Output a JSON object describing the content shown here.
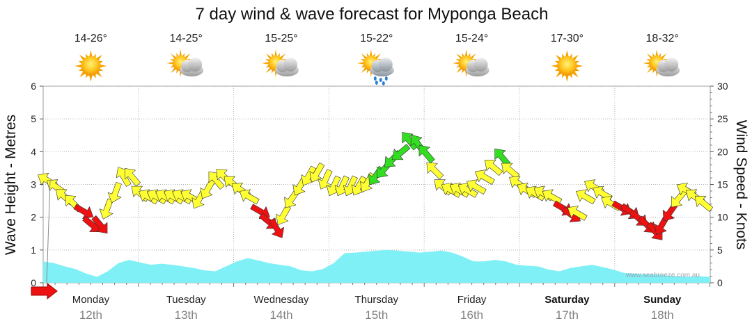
{
  "chart_data": {
    "type": "area",
    "title": "7 day wind & wave forecast for Myponga Beach",
    "ylabel_left": "Wave Height - Metres",
    "ylabel_right": "Wind Speed - Knots",
    "ylim_left": [
      0,
      6
    ],
    "ylim_right": [
      0,
      30
    ],
    "yticks_left": [
      "0",
      "1",
      "2",
      "3",
      "4",
      "5",
      "6"
    ],
    "yticks_right": [
      "0",
      "5",
      "10",
      "15",
      "20",
      "25",
      "30"
    ],
    "watermark": "www.seabreeze.com.au",
    "colors": {
      "wave_fill": "#7ff0f5",
      "wind_light": "#ffff33",
      "wind_moderate": "#33dd22",
      "wind_offshore": "#ee1111",
      "grid": "#b0b0b0"
    },
    "days": [
      {
        "day": "Monday",
        "date": "12th",
        "temp": "14-26°",
        "weather": "sunny-icon",
        "bold": false
      },
      {
        "day": "Tuesday",
        "date": "13th",
        "temp": "14-25°",
        "weather": "partly-cloudy-icon",
        "bold": false
      },
      {
        "day": "Wednesday",
        "date": "14th",
        "temp": "15-25°",
        "weather": "partly-cloudy-icon",
        "bold": false
      },
      {
        "day": "Thursday",
        "date": "15th",
        "temp": "15-22°",
        "weather": "showers-icon",
        "bold": false
      },
      {
        "day": "Friday",
        "date": "16th",
        "temp": "15-24°",
        "weather": "partly-cloudy-icon",
        "bold": false
      },
      {
        "day": "Saturday",
        "date": "17th",
        "temp": "17-30°",
        "weather": "sunny-icon",
        "bold": true
      },
      {
        "day": "Sunday",
        "date": "18th",
        "temp": "18-32°",
        "weather": "partly-cloudy-icon",
        "bold": true
      }
    ],
    "wave_height_m": [
      0.65,
      0.6,
      0.5,
      0.42,
      0.28,
      0.18,
      0.35,
      0.6,
      0.7,
      0.62,
      0.55,
      0.58,
      0.55,
      0.5,
      0.45,
      0.38,
      0.35,
      0.5,
      0.65,
      0.75,
      0.68,
      0.6,
      0.55,
      0.5,
      0.38,
      0.35,
      0.42,
      0.6,
      0.9,
      0.92,
      0.95,
      0.98,
      1.0,
      0.98,
      0.95,
      0.92,
      0.95,
      0.98,
      0.92,
      0.8,
      0.65,
      0.65,
      0.7,
      0.65,
      0.55,
      0.52,
      0.5,
      0.4,
      0.35,
      0.45,
      0.5,
      0.55,
      0.48,
      0.4,
      0.3,
      0.28,
      0.26,
      0.25,
      0.22,
      0.2,
      0.18,
      0.2,
      0.18
    ],
    "wind_speed_knots": [
      15.5,
      14.5,
      13,
      12,
      11,
      9,
      9,
      11.5,
      14,
      16,
      16,
      13.5,
      13,
      13,
      13,
      13,
      13,
      13,
      13,
      14.5,
      15.5,
      16,
      15,
      14,
      13,
      11,
      9.5,
      8.5,
      10.5,
      13,
      15,
      16.5,
      17,
      16,
      15,
      15,
      15,
      15,
      15.5,
      16.5,
      17.5,
      19,
      20,
      21.5,
      21,
      19.5,
      17,
      14.5,
      14,
      14,
      14,
      14.5,
      16,
      17.5,
      19,
      17,
      15,
      14,
      13.5,
      13.5,
      13,
      11.5,
      10.5,
      10.5,
      13,
      14.5,
      13.5,
      12,
      11.5,
      11,
      10,
      9,
      8,
      9,
      11,
      13,
      14,
      13,
      12
    ],
    "wind_category": [
      "light",
      "light",
      "light",
      "light",
      "offshore",
      "offshore",
      "offshore",
      "light",
      "light",
      "light",
      "light",
      "light",
      "light",
      "light",
      "light",
      "light",
      "light",
      "light",
      "light",
      "light",
      "light",
      "light",
      "light",
      "light",
      "light",
      "offshore",
      "offshore",
      "offshore",
      "light",
      "light",
      "light",
      "light",
      "light",
      "light",
      "light",
      "light",
      "light",
      "light",
      "light",
      "moderate",
      "moderate",
      "moderate",
      "moderate",
      "moderate",
      "moderate",
      "moderate",
      "light",
      "light",
      "light",
      "light",
      "light",
      "light",
      "light",
      "light",
      "moderate",
      "light",
      "light",
      "light",
      "light",
      "light",
      "light",
      "offshore",
      "offshore",
      "light",
      "light",
      "light",
      "light",
      "light",
      "offshore",
      "offshore",
      "offshore",
      "offshore",
      "offshore",
      "offshore",
      "offshore",
      "light",
      "light",
      "light",
      "light"
    ],
    "wind_direction_deg": [
      300,
      305,
      310,
      315,
      120,
      130,
      140,
      200,
      200,
      330,
      320,
      310,
      300,
      300,
      300,
      300,
      300,
      300,
      210,
      210,
      320,
      315,
      310,
      305,
      300,
      120,
      130,
      150,
      210,
      215,
      210,
      210,
      210,
      205,
      205,
      205,
      205,
      210,
      210,
      215,
      220,
      225,
      230,
      320,
      325,
      320,
      315,
      310,
      300,
      300,
      300,
      300,
      300,
      310,
      320,
      310,
      305,
      300,
      300,
      300,
      300,
      120,
      125,
      300,
      300,
      300,
      300,
      300,
      120,
      125,
      130,
      135,
      140,
      210,
      215,
      220,
      300,
      305,
      310
    ]
  }
}
